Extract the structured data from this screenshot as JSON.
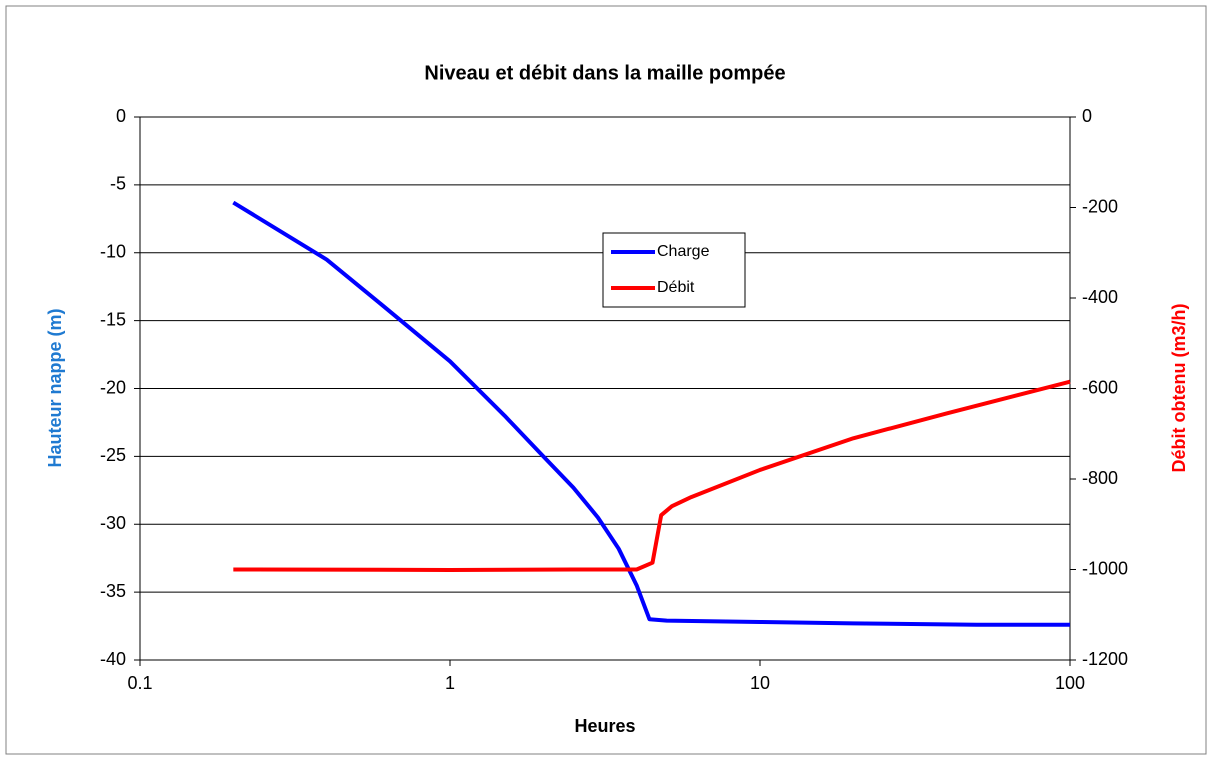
{
  "chart_data": {
    "type": "line",
    "title": "Niveau et débit dans la maille pompée",
    "xlabel": "Heures",
    "ylabel": "Hauteur nappe (m)",
    "y2label": "Débit obtenu (m3/h)",
    "xscale": "log",
    "xlim": [
      0.1,
      100
    ],
    "xticks": [
      0.1,
      1,
      10,
      100
    ],
    "ylim": [
      -40,
      0
    ],
    "yticks": [
      0,
      -5,
      -10,
      -15,
      -20,
      -25,
      -30,
      -35,
      -40
    ],
    "y2lim": [
      -1200,
      0
    ],
    "y2ticks": [
      0,
      -200,
      -400,
      -600,
      -800,
      -1000,
      -1200
    ],
    "grid": true,
    "legend": "center",
    "series": [
      {
        "name": "Charge",
        "color": "#0000ff",
        "x": [
          0.2,
          0.4,
          0.6,
          1,
          1.5,
          2,
          2.5,
          3,
          3.5,
          4,
          4.4,
          5,
          10,
          20,
          50,
          100
        ],
        "values": [
          -6.3,
          -10.5,
          -13.8,
          -18,
          -22,
          -25,
          -27.3,
          -29.5,
          -31.8,
          -34.5,
          -37,
          -37.1,
          -37.2,
          -37.3,
          -37.4,
          -37.4
        ]
      },
      {
        "name": "Débit",
        "color": "#ff0000",
        "axis": "y2",
        "x": [
          0.2,
          1,
          2.5,
          4,
          4.5,
          4.8,
          5.2,
          6,
          10,
          20,
          40,
          100
        ],
        "values": [
          -1000,
          -1001,
          -1000,
          -1000,
          -985,
          -880,
          -860,
          -840,
          -780,
          -710,
          -655,
          -585
        ]
      }
    ]
  }
}
